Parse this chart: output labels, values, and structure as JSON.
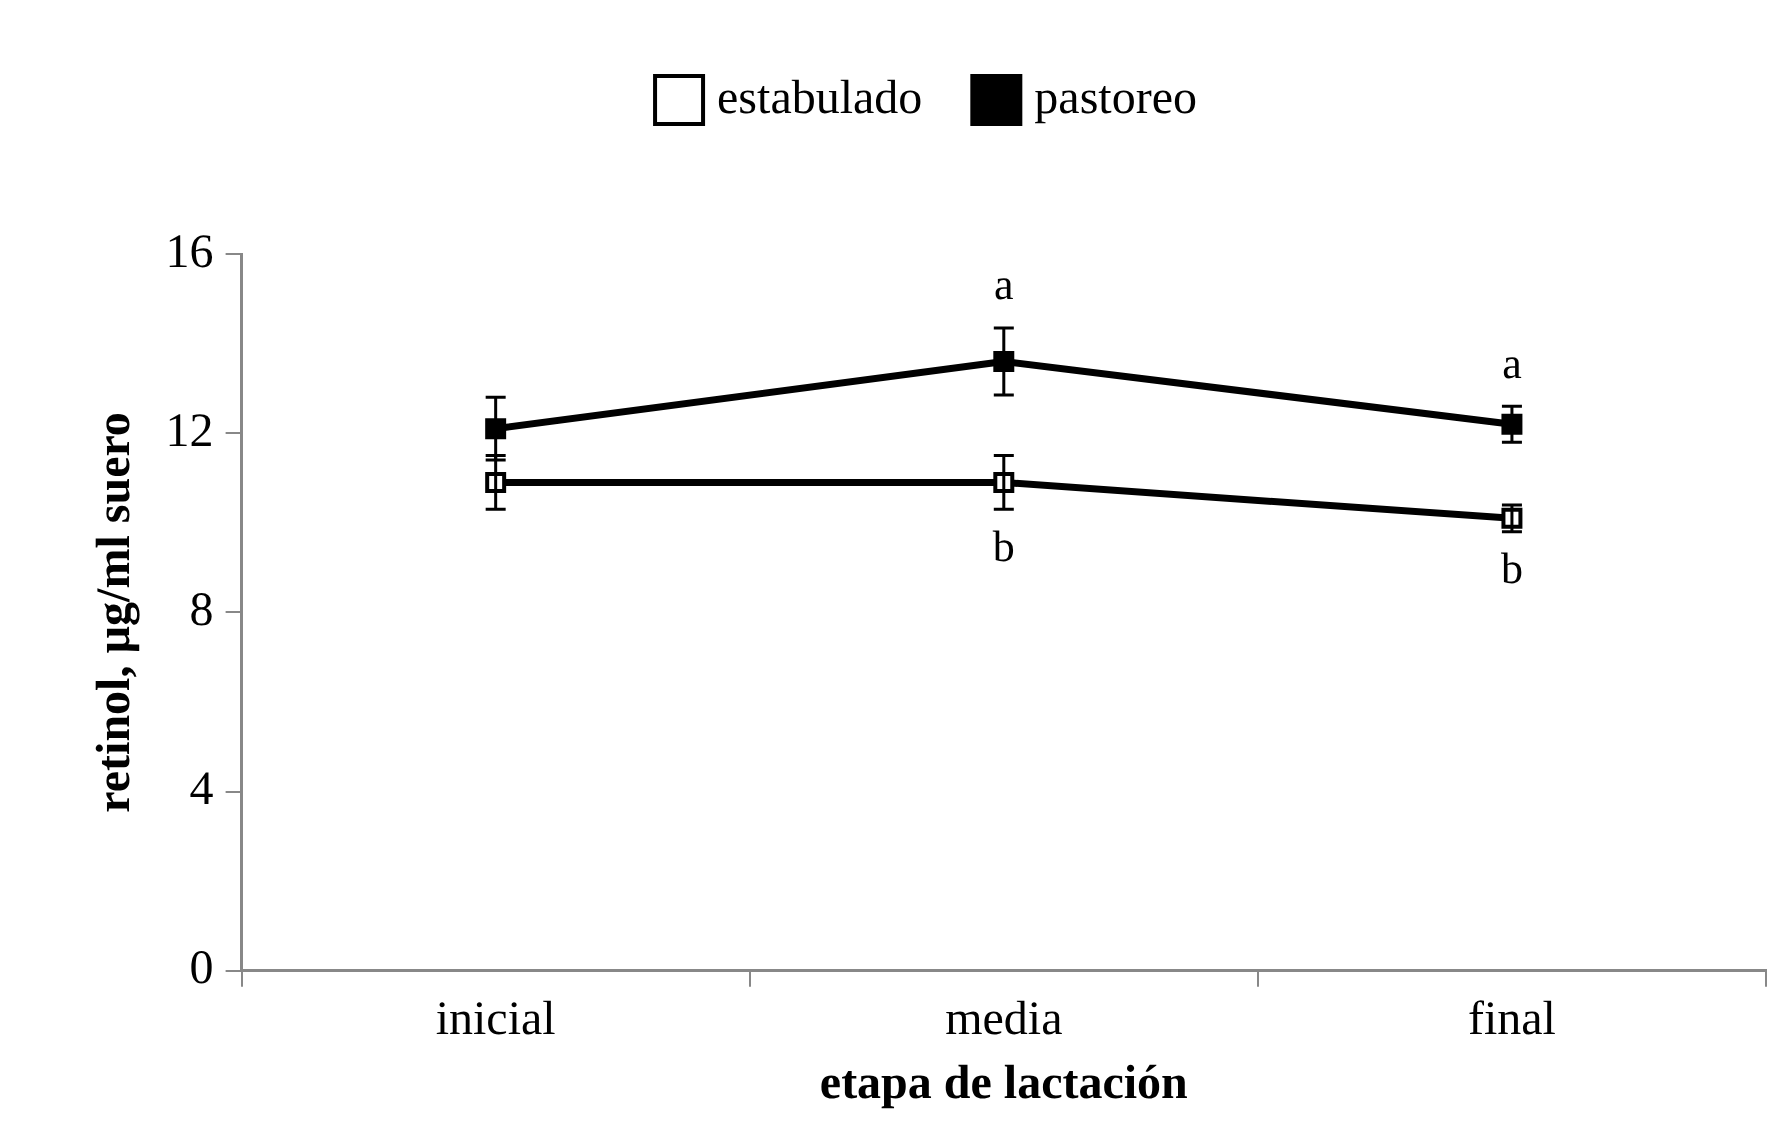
{
  "chart_data": {
    "type": "line",
    "xlabel": "etapa de lactación",
    "ylabel": "retinol, µg/ml suero",
    "categories": [
      "inicial",
      "media",
      "final"
    ],
    "series": [
      {
        "name": "estabulado",
        "color": "#000000",
        "values": [
          10.9,
          10.9,
          10.1
        ],
        "errors": [
          0.6,
          0.6,
          0.3
        ]
      },
      {
        "name": "pastoreo",
        "color": "#000000",
        "values": [
          12.1,
          13.6,
          12.2
        ],
        "errors": [
          0.7,
          0.75,
          0.4
        ]
      }
    ],
    "ylim": [
      0,
      16
    ],
    "yticks": [
      0,
      4,
      8,
      12,
      16
    ],
    "grid": false,
    "legend": "top",
    "marker": "square",
    "line_style": "solid",
    "annotations": [
      {
        "text": "a",
        "x": "media",
        "y": 13.6
      },
      {
        "text": "a",
        "x": "final",
        "y": 12.2
      },
      {
        "text": "b",
        "x": "media",
        "y": 10.9
      },
      {
        "text": "b",
        "x": "final",
        "y": 10.1
      }
    ]
  }
}
